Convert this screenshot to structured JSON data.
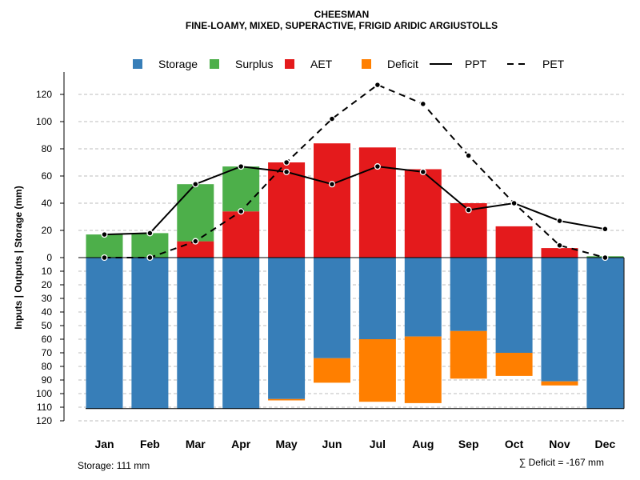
{
  "chart_data": {
    "type": "bar",
    "title": "CHEESMAN",
    "subtitle": "FINE-LOAMY, MIXED, SUPERACTIVE, FRIGID ARIDIC ARGIUSTOLLS",
    "ylabel": "Inputs | Outputs | Storage    (mm)",
    "categories": [
      "Jan",
      "Feb",
      "Mar",
      "Apr",
      "May",
      "Jun",
      "Jul",
      "Aug",
      "Sep",
      "Oct",
      "Nov",
      "Dec"
    ],
    "yticks_upper": [
      "0",
      "20",
      "40",
      "60",
      "80",
      "100",
      "120"
    ],
    "yticks_lower": [
      "10",
      "20",
      "30",
      "40",
      "50",
      "60",
      "70",
      "80",
      "90",
      "100",
      "110",
      "120"
    ],
    "ylim_upper": [
      0,
      130
    ],
    "ylim_lower": [
      0,
      120
    ],
    "legend": {
      "storage": "Storage",
      "surplus": "Surplus",
      "aet": "AET",
      "deficit": "Deficit",
      "ppt": "PPT",
      "pet": "PET"
    },
    "colors": {
      "storage": "#377EB8",
      "surplus": "#4DAF4A",
      "aet": "#E41A1C",
      "deficit": "#FF7F00",
      "ppt": "#000000",
      "pet": "#000000",
      "grid": "#BEBEBE"
    },
    "series": {
      "aet": [
        0,
        0,
        12,
        34,
        70,
        84,
        81,
        65,
        40,
        23,
        7,
        0
      ],
      "surplus": [
        17,
        18,
        42,
        33,
        0,
        0,
        0,
        0,
        0,
        0,
        0,
        1
      ],
      "ppt": [
        17,
        18,
        54,
        67,
        63,
        54,
        67,
        63,
        35,
        40,
        27,
        21
      ],
      "pet": [
        0,
        0,
        12,
        34,
        70,
        102,
        127,
        113,
        75,
        40,
        9,
        0
      ],
      "storage": [
        111,
        111,
        111,
        111,
        104,
        74,
        60,
        58,
        54,
        70,
        91,
        111
      ],
      "deficit": [
        0,
        0,
        0,
        0,
        1,
        18,
        46,
        49,
        35,
        17,
        3,
        0
      ]
    },
    "storage_capacity": 111
  },
  "footer": {
    "storage_note": "Storage: 111 mm",
    "deficit_note": "∑ Deficit = -167 mm"
  }
}
